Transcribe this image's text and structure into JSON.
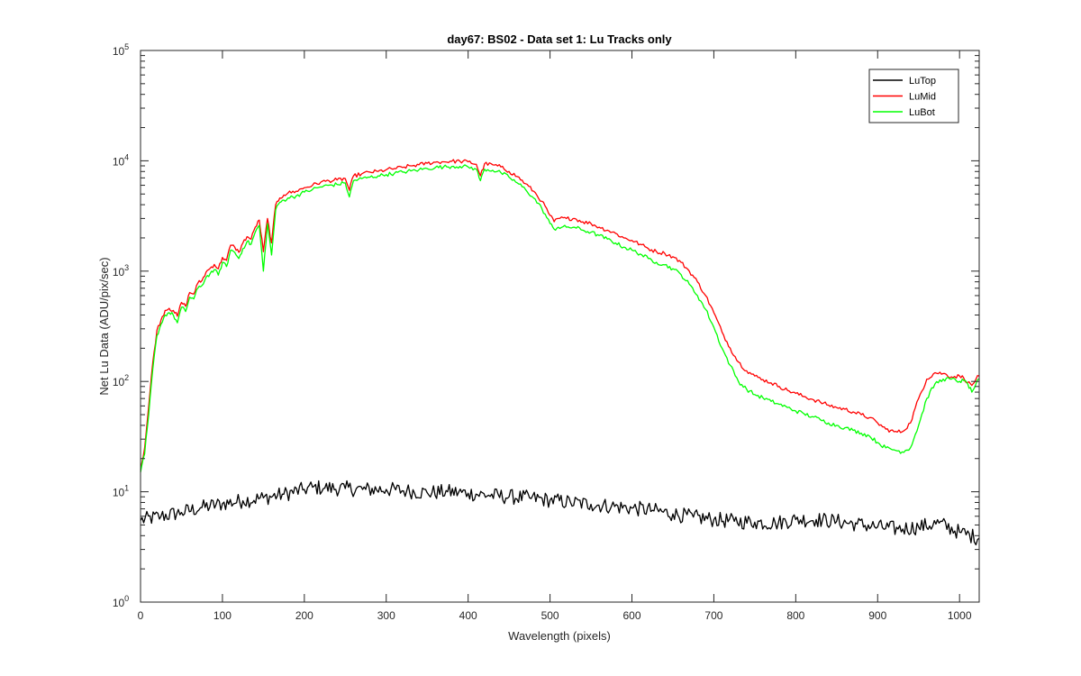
{
  "chart_data": {
    "type": "line",
    "title": "day67: BS02 - Data set 1: Lu Tracks only",
    "xlabel": "Wavelength (pixels)",
    "ylabel": "Net Lu Data (ADU/pix/sec)",
    "xlim": [
      0,
      1024
    ],
    "ylim": [
      1,
      100000
    ],
    "yscale": "log",
    "grid": false,
    "legend_position": "top-right",
    "x_ticks": [
      0,
      100,
      200,
      300,
      400,
      500,
      600,
      700,
      800,
      900,
      1000
    ],
    "y_ticks": [
      {
        "value": 1,
        "base": "10",
        "exp": "0"
      },
      {
        "value": 10,
        "base": "10",
        "exp": "1"
      },
      {
        "value": 100,
        "base": "10",
        "exp": "2"
      },
      {
        "value": 1000,
        "base": "10",
        "exp": "3"
      },
      {
        "value": 10000,
        "base": "10",
        "exp": "4"
      },
      {
        "value": 100000,
        "base": "10",
        "exp": "5"
      }
    ],
    "series": [
      {
        "name": "LuTop",
        "color": "#000000",
        "x": [
          0,
          25,
          50,
          75,
          100,
          125,
          150,
          175,
          200,
          210,
          225,
          250,
          275,
          300,
          325,
          350,
          375,
          400,
          425,
          450,
          475,
          500,
          525,
          550,
          575,
          600,
          625,
          650,
          675,
          700,
          725,
          750,
          775,
          800,
          825,
          850,
          875,
          900,
          925,
          950,
          975,
          1000,
          1024
        ],
        "values": [
          5.5,
          6.0,
          6.5,
          7.2,
          7.8,
          8.3,
          8.8,
          9.5,
          10.5,
          11.0,
          10.8,
          10.7,
          10.5,
          10.5,
          10.2,
          9.8,
          10.0,
          9.7,
          9.3,
          9.0,
          8.8,
          8.4,
          8.0,
          7.7,
          7.4,
          7.1,
          6.8,
          6.3,
          5.9,
          5.6,
          5.4,
          5.3,
          5.2,
          5.6,
          5.6,
          5.4,
          5.1,
          4.8,
          4.6,
          4.8,
          5.2,
          4.3,
          3.8
        ]
      },
      {
        "name": "LuMid",
        "color": "#ff0000",
        "x": [
          0,
          5,
          10,
          15,
          20,
          25,
          30,
          35,
          40,
          45,
          50,
          55,
          60,
          65,
          70,
          75,
          80,
          85,
          90,
          95,
          100,
          105,
          110,
          115,
          120,
          125,
          130,
          135,
          140,
          145,
          150,
          155,
          160,
          165,
          170,
          175,
          180,
          190,
          200,
          210,
          220,
          230,
          240,
          250,
          255,
          260,
          270,
          280,
          290,
          300,
          310,
          320,
          330,
          340,
          350,
          360,
          370,
          380,
          390,
          400,
          410,
          415,
          420,
          430,
          440,
          450,
          460,
          470,
          480,
          490,
          500,
          505,
          510,
          520,
          530,
          540,
          550,
          560,
          570,
          580,
          590,
          600,
          610,
          620,
          630,
          640,
          650,
          660,
          670,
          680,
          690,
          700,
          710,
          720,
          730,
          740,
          750,
          760,
          770,
          780,
          790,
          800,
          810,
          820,
          830,
          840,
          850,
          860,
          870,
          880,
          890,
          900,
          910,
          920,
          930,
          940,
          950,
          960,
          970,
          980,
          990,
          1000,
          1005,
          1010,
          1015,
          1020,
          1024
        ],
        "values": [
          16,
          25,
          60,
          150,
          290,
          360,
          440,
          460,
          440,
          390,
          520,
          480,
          640,
          620,
          780,
          820,
          980,
          1060,
          1150,
          1050,
          1330,
          1250,
          1720,
          1650,
          1480,
          1800,
          2050,
          1950,
          2500,
          2900,
          1500,
          3000,
          1800,
          4000,
          4600,
          4900,
          5100,
          5300,
          5700,
          6000,
          6400,
          6600,
          6700,
          6900,
          5400,
          7300,
          7600,
          7900,
          8000,
          8300,
          8500,
          8700,
          9000,
          9200,
          9500,
          9700,
          9800,
          9900,
          9900,
          9800,
          9300,
          7300,
          9400,
          9200,
          8800,
          8000,
          7200,
          6200,
          5300,
          4300,
          3200,
          2800,
          3000,
          3000,
          3000,
          2800,
          2700,
          2500,
          2350,
          2200,
          2000,
          1900,
          1750,
          1600,
          1500,
          1450,
          1350,
          1200,
          1000,
          800,
          600,
          420,
          280,
          200,
          150,
          125,
          112,
          104,
          97,
          90,
          83,
          78,
          73,
          69,
          65,
          61,
          58,
          56,
          53,
          50,
          47,
          42,
          37,
          35,
          35,
          42,
          70,
          105,
          120,
          118,
          110,
          112,
          108,
          98,
          92,
          105,
          112
        ]
      },
      {
        "name": "LuBot",
        "color": "#00ff00",
        "x": [
          0,
          5,
          10,
          15,
          20,
          25,
          30,
          35,
          40,
          45,
          50,
          55,
          60,
          65,
          70,
          75,
          80,
          85,
          90,
          95,
          100,
          105,
          110,
          115,
          120,
          125,
          130,
          135,
          140,
          145,
          150,
          155,
          160,
          165,
          170,
          175,
          180,
          190,
          200,
          210,
          220,
          230,
          240,
          250,
          255,
          260,
          270,
          280,
          290,
          300,
          310,
          320,
          330,
          340,
          350,
          360,
          370,
          380,
          390,
          400,
          410,
          415,
          420,
          430,
          440,
          450,
          460,
          470,
          480,
          490,
          500,
          505,
          510,
          520,
          530,
          540,
          550,
          560,
          570,
          580,
          590,
          600,
          610,
          620,
          630,
          640,
          650,
          660,
          670,
          680,
          690,
          700,
          710,
          720,
          730,
          740,
          750,
          760,
          770,
          780,
          790,
          800,
          810,
          820,
          830,
          840,
          850,
          860,
          870,
          880,
          890,
          900,
          910,
          920,
          930,
          940,
          950,
          960,
          970,
          980,
          990,
          1000,
          1005,
          1010,
          1015,
          1020,
          1024
        ],
        "values": [
          15,
          22,
          50,
          130,
          260,
          330,
          400,
          420,
          400,
          340,
          470,
          430,
          580,
          560,
          700,
          740,
          880,
          950,
          1030,
          920,
          1200,
          1100,
          1550,
          1480,
          1300,
          1600,
          1850,
          1750,
          2250,
          2600,
          1000,
          2700,
          1400,
          3600,
          4200,
          4400,
          4600,
          4800,
          5200,
          5500,
          5800,
          6000,
          6100,
          6300,
          4700,
          6600,
          6900,
          7100,
          7300,
          7500,
          7700,
          7900,
          8100,
          8300,
          8500,
          8700,
          8800,
          8900,
          8900,
          8800,
          8400,
          6600,
          8400,
          8200,
          7800,
          7100,
          6300,
          5500,
          4600,
          3700,
          2700,
          2400,
          2500,
          2500,
          2500,
          2350,
          2250,
          2100,
          1950,
          1800,
          1650,
          1550,
          1430,
          1300,
          1200,
          1140,
          1050,
          930,
          760,
          600,
          450,
          310,
          200,
          140,
          100,
          85,
          76,
          71,
          66,
          62,
          58,
          54,
          51,
          48,
          45,
          42,
          40,
          38,
          36,
          34,
          32,
          28,
          25,
          24,
          23,
          25,
          40,
          70,
          95,
          105,
          105,
          100,
          102,
          95,
          80,
          95,
          105
        ]
      }
    ]
  }
}
